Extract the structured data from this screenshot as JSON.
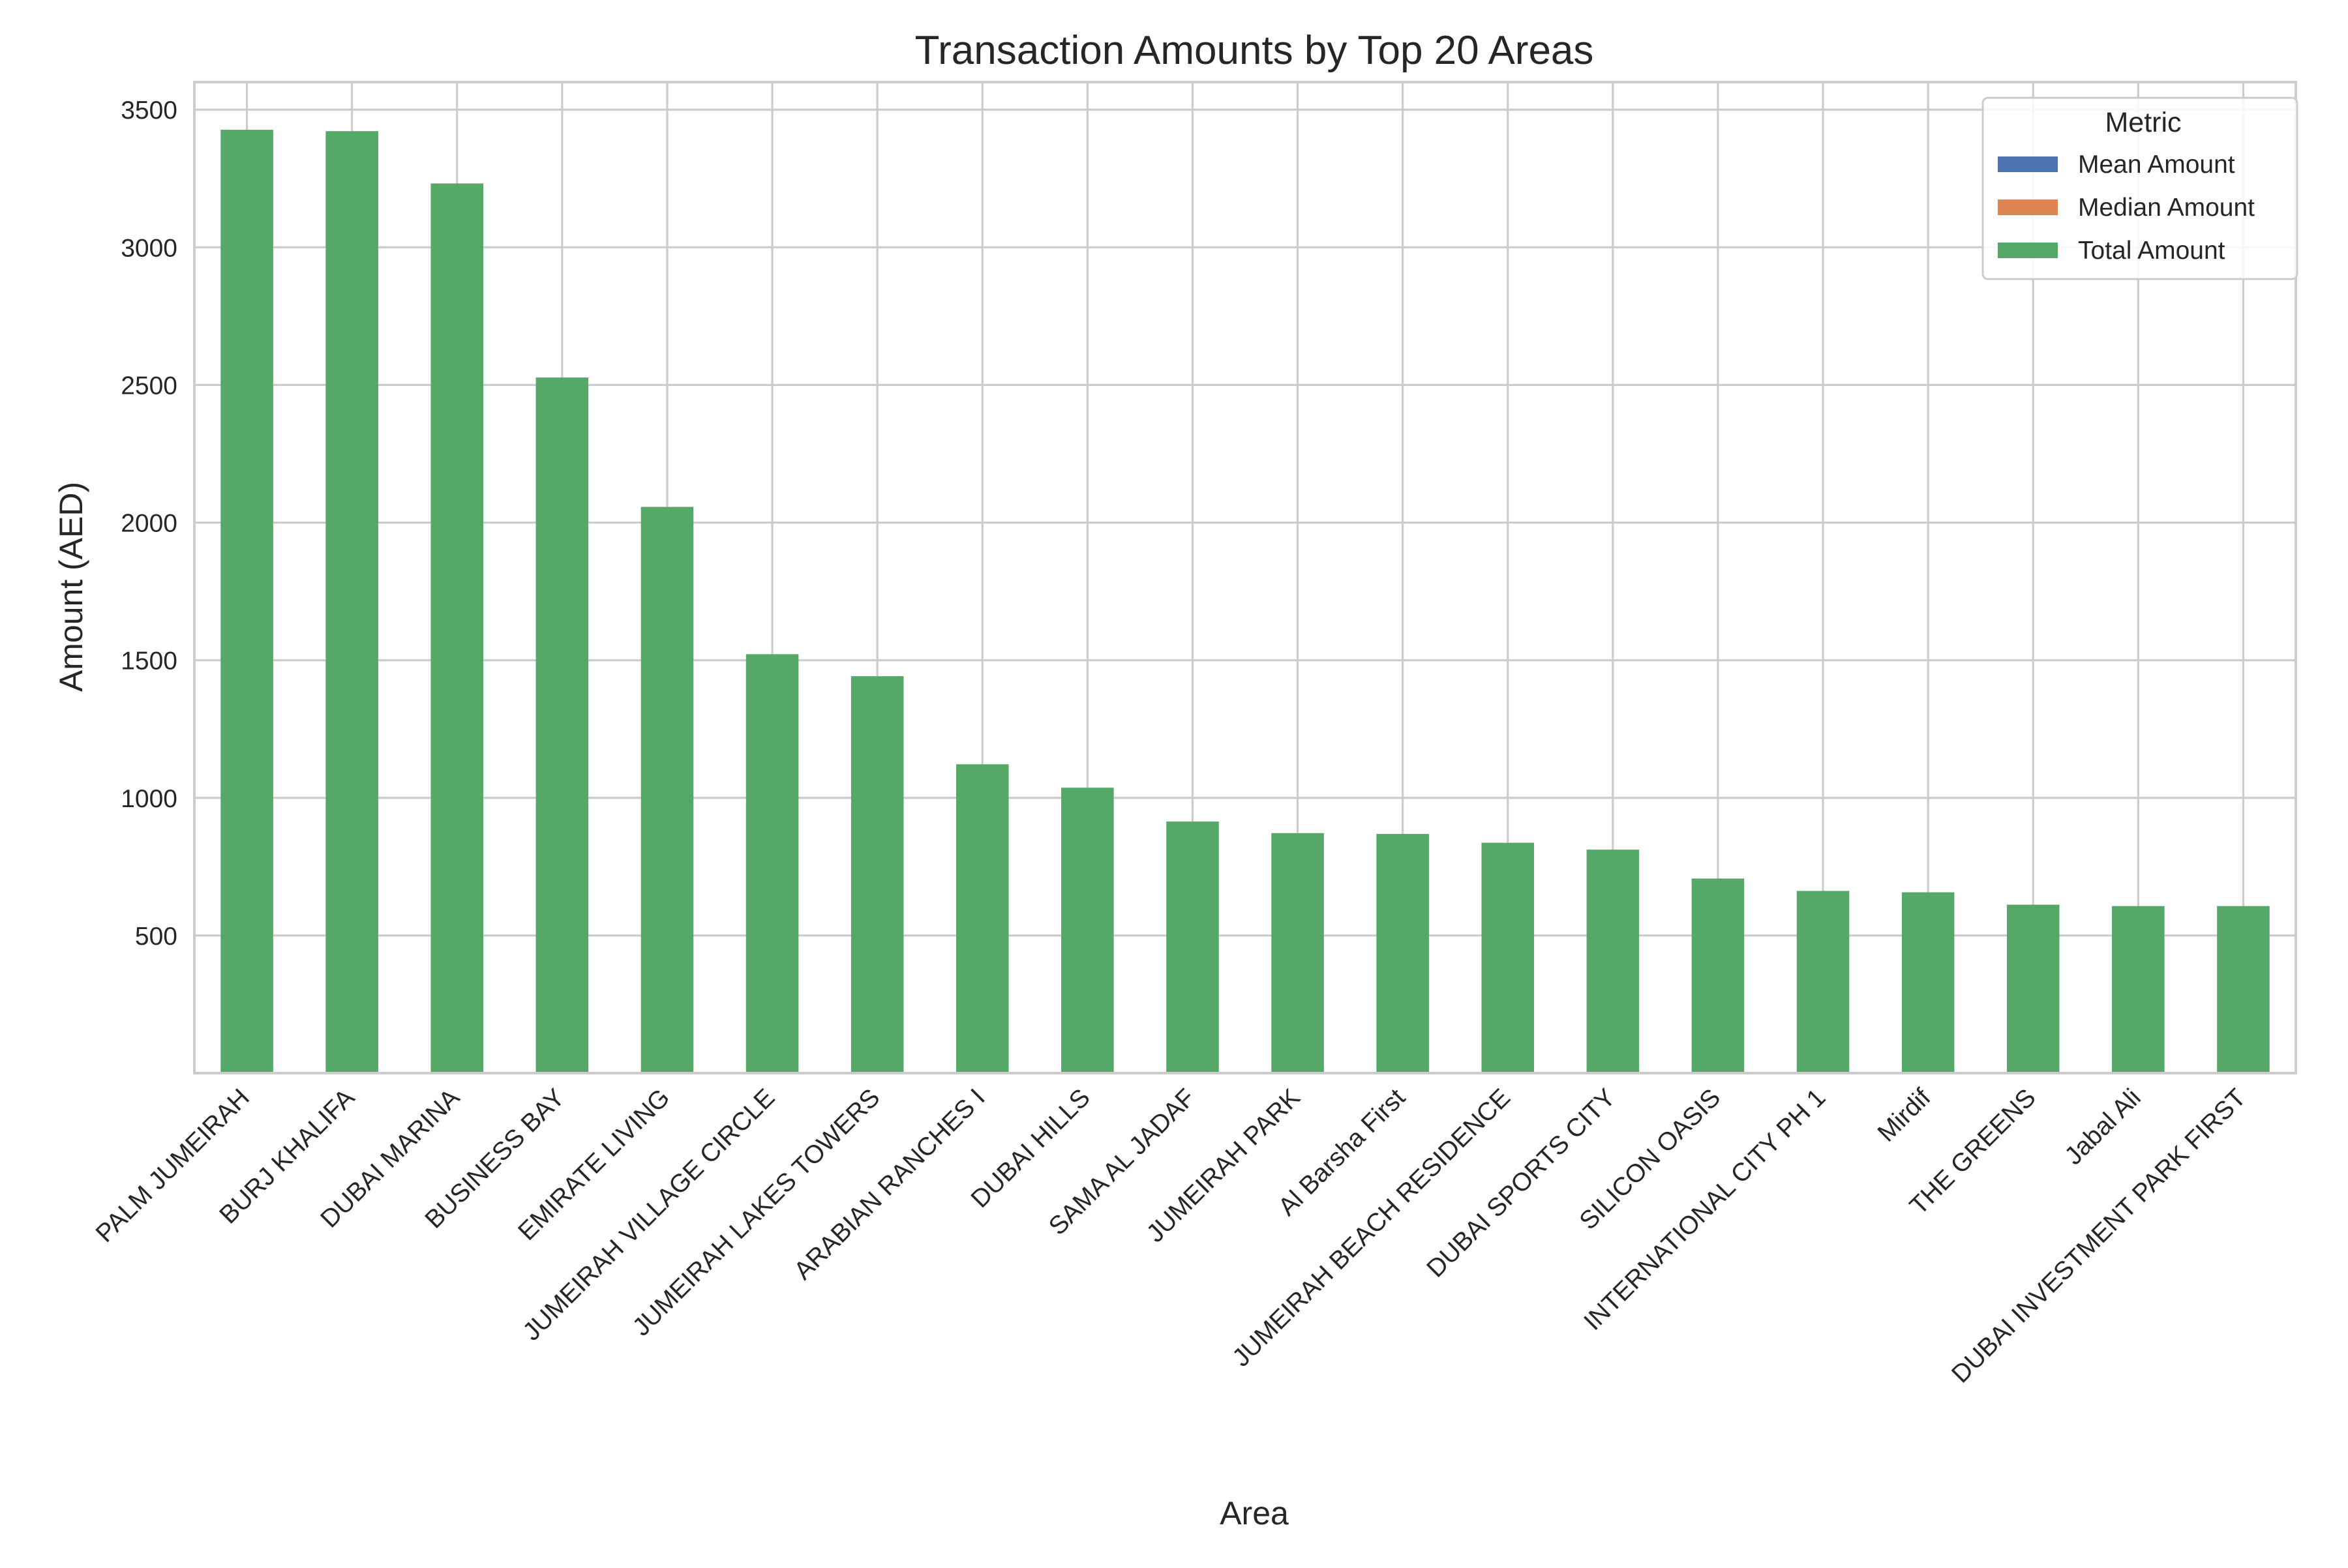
{
  "chart_data": {
    "type": "bar",
    "title": "Transaction Amounts by Top 20 Areas",
    "xlabel": "Area",
    "ylabel": "Amount (AED)",
    "ylim": [
      0,
      3600
    ],
    "yticks": [
      500,
      1000,
      1500,
      2000,
      2500,
      3000,
      3500
    ],
    "grid": true,
    "stacked": true,
    "categories": [
      "PALM JUMEIRAH",
      "BURJ KHALIFA",
      "DUBAI MARINA",
      "BUSINESS BAY",
      "EMIRATE LIVING",
      "JUMEIRAH VILLAGE CIRCLE",
      "JUMEIRAH LAKES TOWERS",
      "ARABIAN RANCHES I",
      "DUBAI HILLS",
      "SAMA AL JADAF",
      "JUMEIRAH PARK",
      "Al Barsha First",
      "JUMEIRAH BEACH RESIDENCE",
      "DUBAI SPORTS CITY",
      "SILICON OASIS",
      "INTERNATIONAL CITY PH 1",
      "Mirdif",
      "THE GREENS",
      "Jabal Ali",
      "DUBAI INVESTMENT PARK FIRST"
    ],
    "series": [
      {
        "name": "Mean Amount",
        "color": "#4c72b0",
        "values": [
          1,
          1,
          1,
          1,
          1,
          1,
          1,
          1,
          1,
          2,
          1,
          2,
          1,
          1,
          1,
          1,
          1,
          1,
          1,
          1
        ]
      },
      {
        "name": "Median Amount",
        "color": "#dd8452",
        "values": [
          1,
          1,
          1,
          1,
          1,
          1,
          1,
          1,
          1,
          2,
          1,
          2,
          1,
          1,
          1,
          1,
          1,
          1,
          1,
          1
        ]
      },
      {
        "name": "Total Amount",
        "color": "#55a868",
        "values": [
          3425,
          3420,
          3230,
          2525,
          2055,
          1520,
          1440,
          1120,
          1035,
          910,
          870,
          865,
          835,
          810,
          705,
          660,
          655,
          610,
          605,
          605
        ]
      }
    ],
    "legend": {
      "title": "Metric",
      "position": "top-right"
    }
  }
}
